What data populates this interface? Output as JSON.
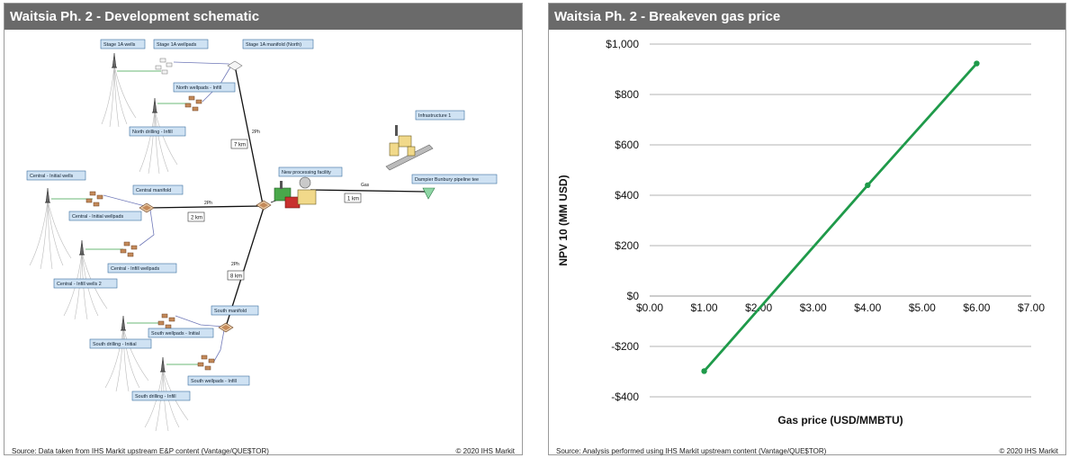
{
  "left_panel": {
    "title": "Waitsia Ph. 2 - Development schematic",
    "source": "Source:  Data taken  from IHS Markit  upstream  E&P content  (Vantage/QUE$TOR)",
    "copyright": "© 2020  IHS Markit",
    "schematic": {
      "labels": {
        "stage1a_wells": "Stage 1A wells",
        "stage1a_wellpads": "Stage 1A wellpads",
        "stage1a_manifold": "Stage 1A manifold (North)",
        "north_wellpads": "North wellpads - Infill",
        "north_drilling": "North drilling - Infill",
        "infrastructure": "Infrastructure 1",
        "new_processing": "New processing facility",
        "dampier_pipeline": "Dampier Bunbury pipeline tee",
        "central_initial_wells": "Central - Initial wells",
        "central_manifold": "Central manifold",
        "central_initial_wellpads": "Central - Initial wellpads",
        "central_infill_wellpads": "Central - Infill wellpads",
        "central_infill_wells2": "Central - Infill wells 2",
        "south_manifold": "South manifold",
        "south_wellpads_initial": "South wellpads - Initial",
        "south_drilling_initial": "South drilling - Initial",
        "south_wellpads_infill": "South wellpads - Infill",
        "south_drilling_infill": "South drilling - Infill"
      },
      "distances": {
        "north_line": "7 km",
        "central_line": "2 km",
        "south_line": "8 km",
        "gas_line": "1 km"
      },
      "flow_tags": {
        "north": "2Ph",
        "central": "2Ph",
        "south": "2Ph",
        "gas": "Gas"
      }
    }
  },
  "right_panel": {
    "title": "Waitsia Ph. 2 - Breakeven gas price",
    "source": "Source:  Analysis performed using IHS Markit upstream content (Vantage/QUE$TOR)",
    "copyright": "© 2020  IHS Markit"
  },
  "chart_data": {
    "type": "line",
    "title": "",
    "xlabel": "Gas price (USD/MMBTU)",
    "ylabel": "NPV 10 (MM USD)",
    "xlim": [
      0,
      7
    ],
    "ylim": [
      -400,
      1000
    ],
    "x_ticks": [
      0,
      1,
      2,
      3,
      4,
      5,
      6,
      7
    ],
    "x_tick_labels": [
      "$0.00",
      "$1.00",
      "$2.00",
      "$3.00",
      "$4.00",
      "$5.00",
      "$6.00",
      "$7.00"
    ],
    "y_ticks": [
      -400,
      -200,
      0,
      200,
      400,
      600,
      800,
      1000
    ],
    "y_tick_labels": [
      "-$400",
      "-$200",
      "$0",
      "$200",
      "$400",
      "$600",
      "$800",
      "$1,000"
    ],
    "grid": "horizontal",
    "series": [
      {
        "x": [
          1,
          4,
          6
        ],
        "values": [
          -298,
          440,
          923
        ],
        "color": "#1f9a4a"
      }
    ]
  }
}
